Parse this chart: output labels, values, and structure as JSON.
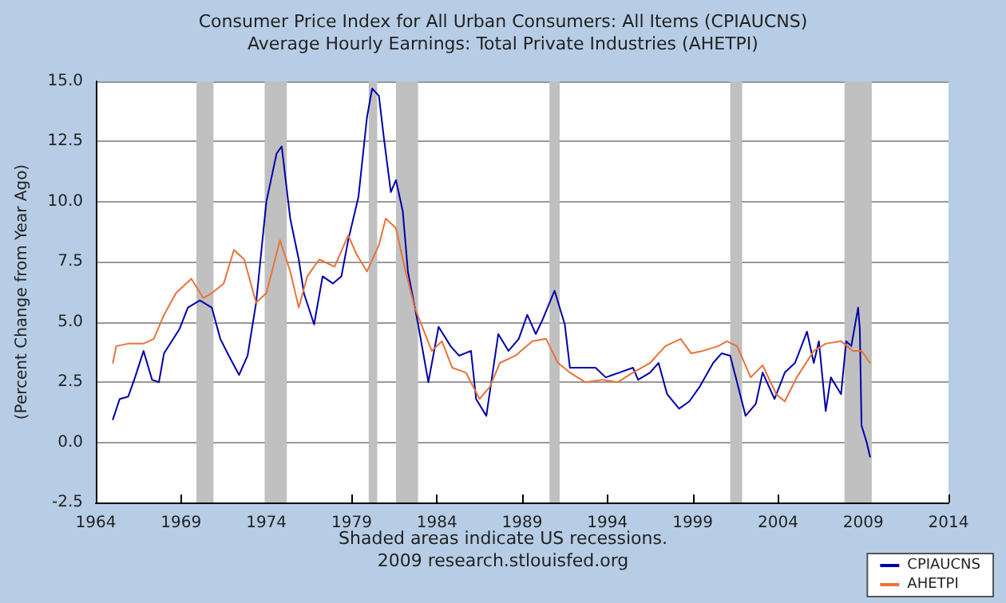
{
  "chart_data": {
    "type": "line",
    "title": "Consumer Price Index for All Urban Consumers: All Items (CPIAUCNS)",
    "subtitle": "Average Hourly Earnings: Total Private Industries (AHETPI)",
    "ylabel": "(Percent Change from Year Ago)",
    "annotations": [
      "Shaded areas indicate US recessions.",
      "2009 research.stlouisfed.org"
    ],
    "series": [
      {
        "name": "CPIAUCNS",
        "color": "#0000aa",
        "x": [
          1965.0,
          1965.4,
          1965.9,
          1966.3,
          1966.8,
          1967.3,
          1967.7,
          1968.0,
          1968.9,
          1969.4,
          1970.1,
          1970.8,
          1971.3,
          1971.8,
          1972.4,
          1972.9,
          1973.4,
          1974.0,
          1974.6,
          1974.9,
          1975.4,
          1975.9,
          1976.2,
          1976.8,
          1977.3,
          1977.9,
          1978.4,
          1978.8,
          1979.4,
          1979.9,
          1980.2,
          1980.6,
          1980.9,
          1981.3,
          1981.6,
          1982.0,
          1982.3,
          1982.9,
          1983.5,
          1984.1,
          1984.8,
          1985.3,
          1986.0,
          1986.3,
          1986.9,
          1987.6,
          1988.2,
          1988.8,
          1989.3,
          1989.8,
          1990.2,
          1990.9,
          1991.5,
          1991.8,
          1992.7,
          1993.3,
          1993.9,
          1994.7,
          1995.5,
          1995.8,
          1996.5,
          1997.0,
          1997.5,
          1998.2,
          1998.8,
          1999.4,
          2000.2,
          2000.7,
          2001.2,
          2001.6,
          2002.1,
          2002.7,
          2003.1,
          2003.8,
          2004.4,
          2005.0,
          2005.7,
          2006.1,
          2006.4,
          2006.8,
          2007.1,
          2007.7,
          2008.0,
          2008.3,
          2008.7,
          2008.8,
          2008.9,
          2009.2,
          2009.4
        ],
        "values": [
          0.95,
          1.8,
          1.9,
          2.7,
          3.8,
          2.6,
          2.5,
          3.7,
          4.7,
          5.6,
          5.9,
          5.6,
          4.3,
          3.6,
          2.8,
          3.6,
          5.8,
          10.0,
          12.0,
          12.3,
          9.3,
          7.6,
          6.2,
          4.9,
          6.9,
          6.6,
          6.9,
          8.4,
          10.2,
          13.5,
          14.7,
          14.4,
          12.6,
          10.4,
          10.9,
          9.6,
          7.1,
          4.9,
          2.5,
          4.8,
          4.0,
          3.6,
          3.8,
          1.8,
          1.1,
          4.5,
          3.8,
          4.3,
          5.3,
          4.5,
          5.1,
          6.3,
          4.9,
          3.1,
          3.1,
          3.1,
          2.7,
          2.9,
          3.1,
          2.6,
          2.9,
          3.3,
          2.0,
          1.4,
          1.7,
          2.3,
          3.3,
          3.7,
          3.6,
          2.5,
          1.1,
          1.6,
          2.9,
          1.8,
          2.9,
          3.3,
          4.6,
          3.3,
          4.2,
          1.3,
          2.7,
          2.0,
          4.2,
          4.0,
          5.6,
          4.7,
          0.7,
          0.0,
          -0.6
        ]
      },
      {
        "name": "AHETPI",
        "color": "#e8733a",
        "x": [
          1965.0,
          1965.2,
          1965.9,
          1966.8,
          1967.4,
          1968.0,
          1968.7,
          1969.6,
          1970.3,
          1970.8,
          1971.5,
          1972.1,
          1972.7,
          1973.4,
          1974.0,
          1974.8,
          1975.4,
          1975.9,
          1976.4,
          1977.1,
          1978.0,
          1978.8,
          1979.3,
          1979.9,
          1980.6,
          1981.0,
          1981.6,
          1982.1,
          1982.7,
          1983.2,
          1983.7,
          1984.3,
          1984.9,
          1985.7,
          1986.5,
          1987.1,
          1987.7,
          1988.6,
          1989.6,
          1990.4,
          1991.1,
          1991.8,
          1992.7,
          1993.7,
          1994.6,
          1995.5,
          1996.5,
          1997.4,
          1998.3,
          1998.9,
          1999.6,
          2000.5,
          2001.0,
          2001.6,
          2002.4,
          2003.1,
          2003.9,
          2004.4,
          2005.1,
          2006.1,
          2006.8,
          2007.7,
          2008.4,
          2008.9,
          2009.4
        ],
        "values": [
          3.3,
          4.0,
          4.1,
          4.1,
          4.3,
          5.3,
          6.2,
          6.8,
          6.0,
          6.2,
          6.6,
          8.0,
          7.6,
          5.8,
          6.2,
          8.4,
          7.1,
          5.6,
          6.9,
          7.6,
          7.3,
          8.6,
          7.8,
          7.1,
          8.2,
          9.3,
          8.9,
          7.3,
          5.6,
          4.7,
          3.8,
          4.2,
          3.1,
          2.9,
          1.8,
          2.3,
          3.3,
          3.6,
          4.2,
          4.3,
          3.3,
          2.9,
          2.5,
          2.6,
          2.5,
          2.9,
          3.3,
          4.0,
          4.3,
          3.7,
          3.8,
          4.0,
          4.2,
          4.0,
          2.7,
          3.2,
          2.0,
          1.7,
          2.7,
          3.8,
          4.1,
          4.2,
          3.8,
          3.8,
          3.3
        ]
      }
    ],
    "bands": [
      {
        "axis": "x",
        "from": 1969.9,
        "to": 1970.9,
        "color": "#c0c0c0"
      },
      {
        "axis": "x",
        "from": 1973.9,
        "to": 1975.2,
        "color": "#c0c0c0"
      },
      {
        "axis": "x",
        "from": 1980.0,
        "to": 1980.5,
        "color": "#c0c0c0"
      },
      {
        "axis": "x",
        "from": 1981.6,
        "to": 1982.9,
        "color": "#c0c0c0"
      },
      {
        "axis": "x",
        "from": 1990.6,
        "to": 1991.2,
        "color": "#c0c0c0"
      },
      {
        "axis": "x",
        "from": 2001.2,
        "to": 2001.9,
        "color": "#c0c0c0"
      },
      {
        "axis": "x",
        "from": 2007.9,
        "to": 2009.5,
        "color": "#c0c0c0"
      }
    ],
    "xlim": [
      1964,
      2014
    ],
    "xticks": [
      1964,
      1969,
      1974,
      1979,
      1984,
      1989,
      1994,
      1999,
      2004,
      2009,
      2014
    ],
    "ylim": [
      -2.5,
      15
    ],
    "yticks": [
      {
        "value": -2.5,
        "label": "-2.5"
      },
      {
        "value": 0,
        "label": "0.0"
      },
      {
        "value": 2.5,
        "label": "2.5"
      },
      {
        "value": 5,
        "label": "5.0"
      },
      {
        "value": 7.5,
        "label": "7.5"
      },
      {
        "value": 10,
        "label": "10.0"
      },
      {
        "value": 12.5,
        "label": "12.5"
      },
      {
        "value": 15,
        "label": "15.0"
      }
    ],
    "grid": "y",
    "legend": "bottom right",
    "marker": "none",
    "line_style": "solid"
  }
}
